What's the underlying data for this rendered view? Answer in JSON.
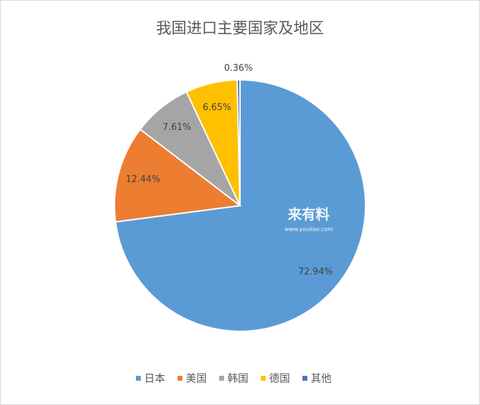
{
  "chart_data": {
    "type": "pie",
    "title": "我国进口主要国家及地区",
    "categories": [
      "日本",
      "美国",
      "韩国",
      "德国",
      "其他"
    ],
    "values": [
      72.94,
      12.44,
      7.61,
      6.65,
      0.36
    ],
    "value_labels": [
      "72.94%",
      "12.44%",
      "7.61%",
      "6.65%",
      "0.36%"
    ],
    "colors": [
      "#5b9bd5",
      "#ed7d31",
      "#a5a5a5",
      "#ffc000",
      "#4472c4"
    ],
    "legend": "bottom",
    "watermark": [
      "来有料",
      "www.youliao.com"
    ]
  }
}
